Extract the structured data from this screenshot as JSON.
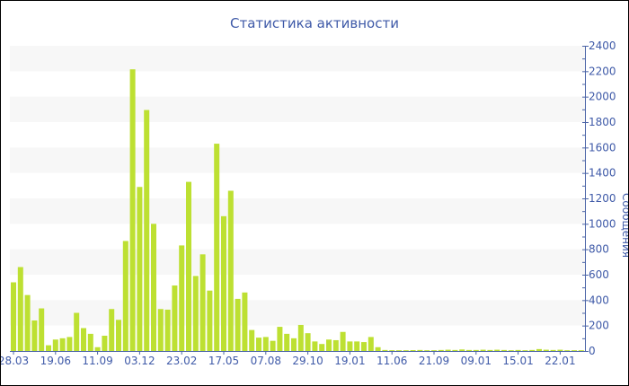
{
  "chart_data": {
    "type": "bar",
    "title": "Статистика активности",
    "ylabel": "Сообщения",
    "xlabel": "",
    "ylim": [
      0,
      2400
    ],
    "yticks": [
      0,
      200,
      400,
      600,
      800,
      1000,
      1200,
      1400,
      1600,
      1800,
      2000,
      2200,
      2400
    ],
    "y_axis_side": "right",
    "grid": "alternating horizontal bands",
    "x_tick_labels": [
      "28.03",
      "19.06",
      "11.09",
      "03.12",
      "23.02",
      "17.05",
      "07.08",
      "29.10",
      "19.01",
      "11.06",
      "21.09",
      "09.01",
      "15.01",
      "22.01"
    ],
    "x_tick_every_n_bars": 6,
    "values": [
      540,
      660,
      440,
      240,
      335,
      45,
      90,
      100,
      110,
      300,
      180,
      135,
      30,
      120,
      330,
      245,
      865,
      2215,
      1290,
      1895,
      1000,
      330,
      325,
      515,
      830,
      1330,
      590,
      760,
      475,
      1630,
      1060,
      1260,
      410,
      460,
      165,
      105,
      110,
      80,
      190,
      135,
      100,
      205,
      140,
      75,
      55,
      90,
      85,
      150,
      75,
      75,
      70,
      110,
      30,
      8,
      6,
      6,
      6,
      7,
      8,
      6,
      6,
      8,
      10,
      8,
      12,
      8,
      8,
      10,
      8,
      10,
      8,
      6,
      8,
      6,
      8,
      15,
      10,
      8,
      10,
      6,
      6,
      6
    ],
    "colors": {
      "bar": "#bde032",
      "text": "#3f5aa8",
      "axis": "#4a63a6",
      "band": "#f7f7f7"
    }
  }
}
